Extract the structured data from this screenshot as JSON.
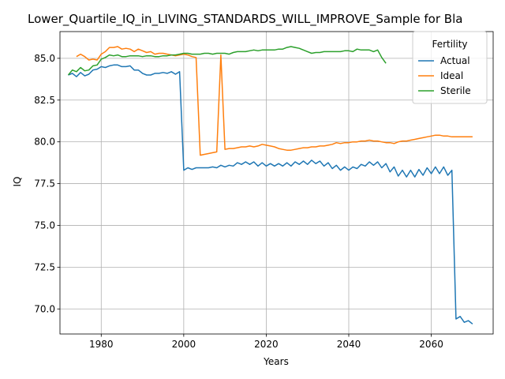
{
  "chart_data": {
    "type": "line",
    "title": "Lower_Quartile_IQ_in_LIVING_STANDARDS_WILL_IMPROVE_Sample for Bla",
    "xlabel": "Years",
    "ylabel": "IQ",
    "xlim": [
      1970,
      2075
    ],
    "ylim": [
      68.5,
      86.6
    ],
    "xticks": [
      1980,
      2000,
      2020,
      2040,
      2060
    ],
    "yticks": [
      70.0,
      72.5,
      75.0,
      77.5,
      80.0,
      82.5,
      85.0
    ],
    "xtick_labels": [
      "1980",
      "2000",
      "2020",
      "2040",
      "2060"
    ],
    "ytick_labels": [
      "70.0",
      "72.5",
      "75.0",
      "77.5",
      "80.0",
      "82.5",
      "85.0"
    ],
    "grid": true,
    "legend": {
      "title": "Fertility",
      "placement": "top-right"
    },
    "series": [
      {
        "name": "Actual",
        "color": "#1f77b4",
        "x": [
          1972,
          1973,
          1974,
          1975,
          1976,
          1977,
          1978,
          1979,
          1980,
          1981,
          1982,
          1983,
          1984,
          1985,
          1986,
          1987,
          1988,
          1989,
          1990,
          1991,
          1992,
          1993,
          1994,
          1995,
          1996,
          1997,
          1998,
          1999,
          2000,
          2001,
          2002,
          2003,
          2004,
          2005,
          2006,
          2007,
          2008,
          2009,
          2010,
          2011,
          2012,
          2013,
          2014,
          2015,
          2016,
          2017,
          2018,
          2019,
          2020,
          2021,
          2022,
          2023,
          2024,
          2025,
          2026,
          2027,
          2028,
          2029,
          2030,
          2031,
          2032,
          2033,
          2034,
          2035,
          2036,
          2037,
          2038,
          2039,
          2040,
          2041,
          2042,
          2043,
          2044,
          2045,
          2046,
          2047,
          2048,
          2049,
          2050,
          2051,
          2052,
          2053,
          2054,
          2055,
          2056,
          2057,
          2058,
          2059,
          2060,
          2061,
          2062,
          2063,
          2064,
          2065,
          2066,
          2067,
          2068,
          2069,
          2070
        ],
        "values": [
          84.0,
          84.1,
          83.9,
          84.15,
          83.95,
          84.05,
          84.3,
          84.35,
          84.5,
          84.45,
          84.55,
          84.6,
          84.6,
          84.5,
          84.5,
          84.55,
          84.3,
          84.3,
          84.1,
          84.0,
          84.0,
          84.1,
          84.1,
          84.15,
          84.1,
          84.2,
          84.05,
          84.2,
          78.3,
          78.45,
          78.35,
          78.45,
          78.45,
          78.45,
          78.45,
          78.5,
          78.45,
          78.6,
          78.5,
          78.6,
          78.55,
          78.75,
          78.65,
          78.8,
          78.65,
          78.8,
          78.55,
          78.75,
          78.55,
          78.7,
          78.55,
          78.7,
          78.55,
          78.75,
          78.55,
          78.8,
          78.65,
          78.85,
          78.65,
          78.9,
          78.7,
          78.85,
          78.55,
          78.75,
          78.4,
          78.6,
          78.3,
          78.5,
          78.3,
          78.5,
          78.4,
          78.65,
          78.55,
          78.8,
          78.6,
          78.8,
          78.45,
          78.7,
          78.2,
          78.5,
          77.95,
          78.3,
          77.9,
          78.3,
          77.9,
          78.35,
          78.0,
          78.45,
          78.1,
          78.5,
          78.1,
          78.5,
          78.0,
          78.3,
          69.4,
          69.55,
          69.2,
          69.3,
          69.1
        ]
      },
      {
        "name": "Ideal",
        "color": "#ff7f0e",
        "x": [
          1974,
          1975,
          1976,
          1977,
          1978,
          1979,
          1980,
          1981,
          1982,
          1983,
          1984,
          1985,
          1986,
          1987,
          1988,
          1989,
          1990,
          1991,
          1992,
          1993,
          1994,
          1995,
          1996,
          1997,
          1998,
          1999,
          2000,
          2001,
          2002,
          2003,
          2004,
          2005,
          2006,
          2007,
          2008,
          2009,
          2010,
          2011,
          2012,
          2013,
          2014,
          2015,
          2016,
          2017,
          2018,
          2019,
          2020,
          2021,
          2022,
          2023,
          2024,
          2025,
          2026,
          2027,
          2028,
          2029,
          2030,
          2031,
          2032,
          2033,
          2034,
          2035,
          2036,
          2037,
          2038,
          2039,
          2040,
          2041,
          2042,
          2043,
          2044,
          2045,
          2046,
          2047,
          2048,
          2049,
          2050,
          2051,
          2052,
          2053,
          2054,
          2055,
          2056,
          2057,
          2058,
          2059,
          2060,
          2061,
          2062,
          2063,
          2064,
          2065,
          2066,
          2067,
          2068,
          2069,
          2070
        ],
        "values": [
          85.1,
          85.25,
          85.1,
          84.9,
          84.95,
          84.9,
          85.25,
          85.4,
          85.65,
          85.65,
          85.7,
          85.55,
          85.6,
          85.55,
          85.4,
          85.55,
          85.45,
          85.35,
          85.4,
          85.25,
          85.3,
          85.3,
          85.25,
          85.2,
          85.15,
          85.2,
          85.25,
          85.2,
          85.1,
          85.05,
          79.2,
          79.25,
          79.3,
          79.35,
          79.4,
          85.2,
          79.55,
          79.6,
          79.6,
          79.65,
          79.7,
          79.7,
          79.75,
          79.7,
          79.75,
          79.85,
          79.8,
          79.75,
          79.7,
          79.6,
          79.55,
          79.5,
          79.5,
          79.55,
          79.6,
          79.65,
          79.65,
          79.7,
          79.7,
          79.75,
          79.75,
          79.8,
          79.85,
          79.95,
          79.9,
          79.95,
          79.95,
          80.0,
          80.0,
          80.05,
          80.05,
          80.1,
          80.05,
          80.05,
          80.0,
          79.95,
          79.95,
          79.9,
          80.0,
          80.05,
          80.05,
          80.1,
          80.15,
          80.2,
          80.25,
          80.3,
          80.35,
          80.4,
          80.4,
          80.35,
          80.35,
          80.3,
          80.3,
          80.3,
          80.3,
          80.3,
          80.3
        ]
      },
      {
        "name": "Sterile",
        "color": "#2ca02c",
        "x": [
          1972,
          1973,
          1974,
          1975,
          1976,
          1977,
          1978,
          1979,
          1980,
          1981,
          1982,
          1983,
          1984,
          1985,
          1986,
          1987,
          1988,
          1989,
          1990,
          1991,
          1992,
          1993,
          1994,
          1995,
          1996,
          1997,
          1998,
          1999,
          2000,
          2001,
          2002,
          2003,
          2004,
          2005,
          2006,
          2007,
          2008,
          2009,
          2010,
          2011,
          2012,
          2013,
          2014,
          2015,
          2016,
          2017,
          2018,
          2019,
          2020,
          2021,
          2022,
          2023,
          2024,
          2025,
          2026,
          2027,
          2028,
          2029,
          2030,
          2031,
          2032,
          2033,
          2034,
          2035,
          2036,
          2037,
          2038,
          2039,
          2040,
          2041,
          2042,
          2043,
          2044,
          2045,
          2046,
          2047,
          2048,
          2049
        ],
        "values": [
          84.0,
          84.3,
          84.2,
          84.45,
          84.25,
          84.3,
          84.55,
          84.6,
          84.95,
          85.05,
          85.2,
          85.15,
          85.2,
          85.1,
          85.1,
          85.15,
          85.15,
          85.15,
          85.1,
          85.15,
          85.15,
          85.1,
          85.1,
          85.15,
          85.15,
          85.2,
          85.2,
          85.25,
          85.3,
          85.3,
          85.25,
          85.25,
          85.25,
          85.3,
          85.3,
          85.25,
          85.3,
          85.3,
          85.3,
          85.25,
          85.35,
          85.4,
          85.4,
          85.4,
          85.45,
          85.5,
          85.45,
          85.5,
          85.5,
          85.5,
          85.5,
          85.55,
          85.55,
          85.65,
          85.7,
          85.65,
          85.6,
          85.5,
          85.4,
          85.3,
          85.35,
          85.35,
          85.4,
          85.4,
          85.4,
          85.4,
          85.4,
          85.45,
          85.45,
          85.4,
          85.55,
          85.5,
          85.5,
          85.5,
          85.4,
          85.5,
          85.05,
          84.7
        ]
      }
    ]
  }
}
